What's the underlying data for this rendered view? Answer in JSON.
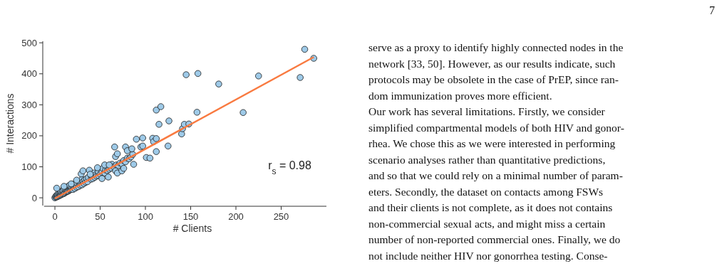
{
  "chart_data": {
    "type": "scatter",
    "xlabel": "# Clients",
    "ylabel": "# Interactions",
    "xlim": [
      -12,
      300
    ],
    "ylim": [
      -25,
      505
    ],
    "xticks": [
      0,
      50,
      100,
      150,
      200,
      250
    ],
    "yticks": [
      0,
      100,
      200,
      300,
      400,
      500
    ],
    "grid": false,
    "marker": "circle",
    "series": [
      {
        "color": "#9ecae8",
        "x": [
          0,
          1,
          1,
          2,
          2,
          3,
          3,
          4,
          4,
          5,
          5,
          6,
          6,
          7,
          7,
          8,
          8,
          9,
          9,
          10,
          10,
          11,
          12,
          12,
          13,
          14,
          14,
          15,
          16,
          16,
          17,
          18,
          18,
          19,
          20,
          20,
          21,
          22,
          23,
          24,
          24,
          26,
          27,
          28,
          29,
          30,
          30,
          31,
          32,
          33,
          34,
          35,
          36,
          37,
          40,
          40,
          42,
          43,
          44,
          45,
          46,
          48,
          48,
          50,
          52,
          53,
          55,
          56,
          58,
          58,
          60,
          62,
          63,
          65,
          68,
          70,
          72,
          74,
          76,
          78,
          80,
          82,
          84,
          86,
          2,
          10,
          18,
          24,
          29,
          31,
          38,
          39,
          47,
          52,
          59,
          55,
          60,
          66,
          67,
          69,
          67,
          69,
          74,
          76,
          78,
          80,
          85,
          87,
          90,
          95,
          97,
          97,
          101,
          105,
          108,
          109,
          112,
          112,
          112,
          115,
          117,
          125,
          126,
          140,
          141,
          143,
          148,
          145,
          157,
          158,
          181,
          208,
          225,
          271,
          276,
          286
        ],
        "values": [
          0,
          2,
          5,
          3,
          8,
          4,
          10,
          6,
          14,
          7,
          12,
          9,
          18,
          10,
          20,
          12,
          16,
          13,
          24,
          14,
          30,
          16,
          18,
          26,
          20,
          21,
          36,
          22,
          25,
          40,
          26,
          28,
          34,
          30,
          27,
          44,
          33,
          30,
          38,
          34,
          48,
          36,
          44,
          40,
          48,
          42,
          60,
          52,
          46,
          58,
          50,
          62,
          52,
          66,
          60,
          72,
          62,
          80,
          66,
          74,
          70,
          72,
          84,
          76,
          82,
          95,
          80,
          90,
          88,
          100,
          92,
          96,
          108,
          100,
          106,
          104,
          112,
          110,
          120,
          116,
          128,
          126,
          132,
          140,
          31,
          37,
          45,
          57,
          77,
          87,
          89,
          76,
          97,
          62,
          67,
          106,
          106,
          164,
          87,
          80,
          133,
          142,
          87,
          95,
          164,
          152,
          158,
          108,
          189,
          164,
          167,
          193,
          130,
          128,
          192,
          181,
          191,
          149,
          283,
          237,
          294,
          167,
          248,
          206,
          223,
          237,
          238,
          397,
          276,
          401,
          367,
          275,
          393,
          388,
          479,
          450
        ]
      },
      {
        "type": "line",
        "color": "#f97a40",
        "marker": "none",
        "line_style": "solid",
        "x": [
          0,
          286
        ],
        "values": [
          -2,
          454
        ]
      }
    ],
    "annotations": [
      "r$_{s}$ = 0.98",
      "7",
      "serve as a proxy to identify highly connected nodes in the",
      "network [33, 50]. However, as our results indicate, such",
      "protocols may be obsolete in the case of PrEP, since ran-",
      "dom immunization proves more efficient.",
      "Our work has several limitations. Firstly, we consider",
      "simplified compartmental models of both HIV and gonor-",
      "rhea. We chose this as we were interested in performing",
      "scenario analyses rather than quantitative predictions,",
      "and so that we could rely on a minimal number of param-",
      "eters. Secondly, the dataset on contacts among FSWs",
      "and their clients is not complete, as it does not contains",
      "non-commercial sexual acts, and might miss a certain",
      "number of non-reported commercial ones. Finally, we do",
      "not include neither HIV nor gonorrhea testing. Conse-"
    ]
  }
}
